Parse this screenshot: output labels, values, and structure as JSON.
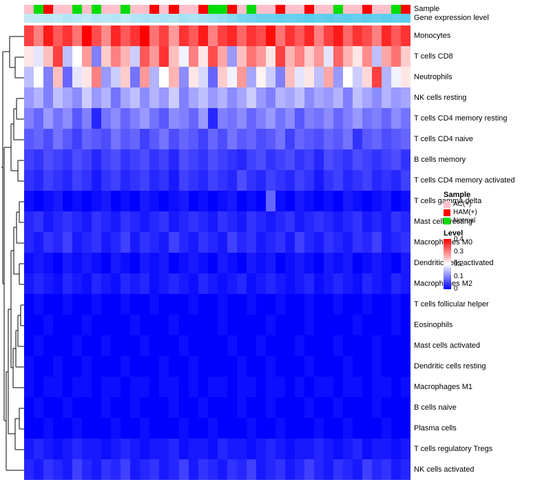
{
  "chart_data": {
    "type": "heatmap",
    "title": "",
    "annotation_labels": {
      "sample": "Sample",
      "gene": "Gene expression level"
    },
    "rows": [
      "Monocytes",
      "T cells CD8",
      "Neutrophils",
      "NK cells resting",
      "T cells CD4 memory resting",
      "T cells CD4 naive",
      "B cells memory",
      "T cells CD4 memory activated",
      "T cells gamma delta",
      "Mast cells resting",
      "Macrophages M0",
      "Dendritic cells activated",
      "Macrophages M2",
      "T cells follicular helper",
      "Eosinophils",
      "Mast cells activated",
      "Dendritic cells resting",
      "Macrophages M1",
      "B cells naive",
      "Plasma cells",
      "T cells regulatory  Tregs",
      "NK cells activated"
    ],
    "n_cols": 40,
    "sample_annotation": [
      "AC(+)",
      "Normal",
      "HAM(+)",
      "AC(+)",
      "AC(+)",
      "Normal",
      "AC(+)",
      "Normal",
      "AC(+)",
      "AC(+)",
      "Normal",
      "AC(+)",
      "AC(+)",
      "HAM(+)",
      "AC(+)",
      "HAM(+)",
      "AC(+)",
      "AC(+)",
      "HAM(+)",
      "Normal",
      "Normal",
      "HAM(+)",
      "AC(+)",
      "Normal",
      "AC(+)",
      "AC(+)",
      "HAM(+)",
      "AC(+)",
      "AC(+)",
      "HAM(+)",
      "AC(+)",
      "AC(+)",
      "Normal",
      "AC(+)",
      "AC(+)",
      "HAM(+)",
      "AC(+)",
      "AC(+)",
      "Normal",
      "HAM(+)"
    ],
    "sample_colors": {
      "AC(+)": "#FFC0CB",
      "HAM(+)": "#FF0000",
      "Normal": "#00DD00"
    },
    "gene_expression": [
      0.2,
      0.2,
      0.25,
      0.2,
      0.3,
      0.25,
      0.2,
      0.3,
      0.25,
      0.3,
      0.2,
      0.3,
      0.35,
      0.3,
      0.35,
      0.3,
      0.4,
      0.35,
      0.4,
      0.45,
      0.5,
      0.6,
      0.7,
      0.75,
      0.8,
      0.8,
      0.85,
      0.8,
      0.85,
      0.9,
      0.85,
      0.9,
      0.85,
      0.9,
      0.85,
      0.9,
      0.85,
      0.9,
      0.85,
      0.9
    ],
    "gene_gradient": [
      "#DEF1F8",
      "#4EC9EC"
    ],
    "color_scale": {
      "min": 0,
      "max": 0.4,
      "colors": [
        "#0000FF",
        "#FFFFFF",
        "#FF0000"
      ]
    },
    "matrix": [
      [
        0.35,
        0.3,
        0.38,
        0.33,
        0.36,
        0.31,
        0.4,
        0.34,
        0.29,
        0.37,
        0.33,
        0.36,
        0.42,
        0.31,
        0.35,
        0.28,
        0.36,
        0.33,
        0.38,
        0.3,
        0.35,
        0.37,
        0.32,
        0.36,
        0.34,
        0.39,
        0.31,
        0.36,
        0.33,
        0.37,
        0.3,
        0.35,
        0.38,
        0.32,
        0.36,
        0.34,
        0.3,
        0.37,
        0.33,
        0.36
      ],
      [
        0.22,
        0.18,
        0.25,
        0.35,
        0.15,
        0.2,
        0.28,
        0.1,
        0.24,
        0.3,
        0.26,
        0.16,
        0.33,
        0.28,
        0.36,
        0.25,
        0.19,
        0.3,
        0.22,
        0.34,
        0.27,
        0.12,
        0.25,
        0.31,
        0.28,
        0.22,
        0.35,
        0.26,
        0.3,
        0.24,
        0.28,
        0.18,
        0.32,
        0.26,
        0.22,
        0.29,
        0.15,
        0.27,
        0.31,
        0.24
      ],
      [
        0.15,
        0.2,
        0.1,
        0.25,
        0.08,
        0.18,
        0.22,
        0.3,
        0.12,
        0.16,
        0.24,
        0.09,
        0.28,
        0.14,
        0.2,
        0.26,
        0.11,
        0.22,
        0.17,
        0.08,
        0.24,
        0.19,
        0.28,
        0.13,
        0.21,
        0.16,
        0.1,
        0.25,
        0.18,
        0.22,
        0.15,
        0.27,
        0.12,
        0.2,
        0.16,
        0.23,
        0.35,
        0.14,
        0.19,
        0.22
      ],
      [
        0.12,
        0.14,
        0.1,
        0.15,
        0.13,
        0.11,
        0.16,
        0.12,
        0.14,
        0.09,
        0.13,
        0.15,
        0.11,
        0.14,
        0.12,
        0.16,
        0.1,
        0.13,
        0.15,
        0.12,
        0.14,
        0.11,
        0.13,
        0.16,
        0.12,
        0.1,
        0.14,
        0.13,
        0.15,
        0.11,
        0.13,
        0.12,
        0.14,
        0.1,
        0.15,
        0.13,
        0.11,
        0.14,
        0.12,
        0.13
      ],
      [
        0.1,
        0.08,
        0.12,
        0.09,
        0.11,
        0.07,
        0.1,
        0.03,
        0.09,
        0.11,
        0.08,
        0.1,
        0.12,
        0.09,
        0.07,
        0.11,
        0.1,
        0.08,
        0.12,
        0.03,
        0.1,
        0.09,
        0.11,
        0.08,
        0.1,
        0.12,
        0.09,
        0.11,
        0.07,
        0.1,
        0.09,
        0.11,
        0.08,
        0.1,
        0.12,
        0.09,
        0.1,
        0.08,
        0.11,
        0.09
      ],
      [
        0.07,
        0.08,
        0.06,
        0.09,
        0.07,
        0.05,
        0.08,
        0.07,
        0.06,
        0.09,
        0.07,
        0.08,
        0.05,
        0.07,
        0.09,
        0.06,
        0.08,
        0.07,
        0.05,
        0.08,
        0.06,
        0.09,
        0.07,
        0.08,
        0.06,
        0.07,
        0.09,
        0.05,
        0.08,
        0.07,
        0.06,
        0.08,
        0.07,
        0.09,
        0.04,
        0.07,
        0.08,
        0.06,
        0.07,
        0.08
      ],
      [
        0.05,
        0.04,
        0.06,
        0.05,
        0.04,
        0.06,
        0.05,
        0.03,
        0.05,
        0.06,
        0.04,
        0.05,
        0.06,
        0.04,
        0.05,
        0.03,
        0.06,
        0.05,
        0.04,
        0.06,
        0.05,
        0.04,
        0.03,
        0.05,
        0.06,
        0.04,
        0.05,
        0.06,
        0.04,
        0.05,
        0.03,
        0.06,
        0.05,
        0.04,
        0.06,
        0.05,
        0.04,
        0.05,
        0.06,
        0.04
      ],
      [
        0.04,
        0.03,
        0.05,
        0.04,
        0.03,
        0.05,
        0.04,
        0.02,
        0.04,
        0.05,
        0.03,
        0.04,
        0.05,
        0.03,
        0.04,
        0.02,
        0.05,
        0.04,
        0.03,
        0.05,
        0.04,
        0.03,
        0.06,
        0.04,
        0.03,
        0.05,
        0.04,
        0.03,
        0.05,
        0.04,
        0.02,
        0.04,
        0.05,
        0.03,
        0.04,
        0.05,
        0.03,
        0.04,
        0.03,
        0.05
      ],
      [
        0.01,
        0.0,
        0.01,
        0.02,
        0.0,
        0.01,
        0.0,
        0.01,
        0.02,
        0.0,
        0.01,
        0.0,
        0.02,
        0.01,
        0.0,
        0.01,
        0.02,
        0.0,
        0.01,
        0.0,
        0.01,
        0.02,
        0.0,
        0.01,
        0.0,
        0.08,
        0.01,
        0.0,
        0.02,
        0.01,
        0.0,
        0.01,
        0.0,
        0.02,
        0.01,
        0.0,
        0.01,
        0.02,
        0.0,
        0.01
      ],
      [
        0.03,
        0.04,
        0.02,
        0.03,
        0.04,
        0.03,
        0.02,
        0.04,
        0.03,
        0.02,
        0.04,
        0.03,
        0.02,
        0.03,
        0.04,
        0.02,
        0.03,
        0.04,
        0.03,
        0.02,
        0.04,
        0.03,
        0.02,
        0.04,
        0.03,
        0.02,
        0.03,
        0.04,
        0.02,
        0.03,
        0.04,
        0.03,
        0.02,
        0.03,
        0.04,
        0.02,
        0.03,
        0.02,
        0.04,
        0.03
      ],
      [
        0.03,
        0.02,
        0.04,
        0.03,
        0.05,
        0.02,
        0.03,
        0.04,
        0.02,
        0.03,
        0.05,
        0.02,
        0.04,
        0.03,
        0.02,
        0.05,
        0.03,
        0.02,
        0.04,
        0.03,
        0.02,
        0.05,
        0.03,
        0.04,
        0.02,
        0.03,
        0.04,
        0.02,
        0.05,
        0.03,
        0.02,
        0.04,
        0.03,
        0.02,
        0.04,
        0.03,
        0.05,
        0.02,
        0.03,
        0.04
      ],
      [
        0.01,
        0.02,
        0.01,
        0.0,
        0.02,
        0.01,
        0.02,
        0.01,
        0.0,
        0.02,
        0.01,
        0.0,
        0.02,
        0.01,
        0.02,
        0.0,
        0.01,
        0.02,
        0.01,
        0.0,
        0.02,
        0.01,
        0.0,
        0.02,
        0.01,
        0.02,
        0.0,
        0.01,
        0.02,
        0.01,
        0.0,
        0.02,
        0.01,
        0.02,
        0.0,
        0.01,
        0.02,
        0.01,
        0.0,
        0.02
      ],
      [
        0.02,
        0.03,
        0.02,
        0.01,
        0.03,
        0.02,
        0.01,
        0.03,
        0.02,
        0.01,
        0.03,
        0.02,
        0.03,
        0.01,
        0.02,
        0.03,
        0.02,
        0.01,
        0.03,
        0.02,
        0.01,
        0.02,
        0.03,
        0.01,
        0.02,
        0.03,
        0.02,
        0.01,
        0.02,
        0.03,
        0.01,
        0.02,
        0.03,
        0.02,
        0.01,
        0.03,
        0.02,
        0.01,
        0.03,
        0.02
      ],
      [
        0.0,
        0.01,
        0.0,
        0.0,
        0.01,
        0.0,
        0.0,
        0.01,
        0.0,
        0.0,
        0.01,
        0.0,
        0.0,
        0.01,
        0.0,
        0.0,
        0.0,
        0.01,
        0.0,
        0.0,
        0.01,
        0.0,
        0.0,
        0.01,
        0.0,
        0.0,
        0.01,
        0.0,
        0.0,
        0.01,
        0.0,
        0.0,
        0.01,
        0.0,
        0.0,
        0.01,
        0.0,
        0.0,
        0.01,
        0.0
      ],
      [
        0.0,
        0.0,
        0.01,
        0.0,
        0.0,
        0.0,
        0.01,
        0.0,
        0.0,
        0.0,
        0.0,
        0.01,
        0.0,
        0.0,
        0.0,
        0.01,
        0.0,
        0.0,
        0.0,
        0.0,
        0.01,
        0.0,
        0.0,
        0.0,
        0.0,
        0.01,
        0.0,
        0.0,
        0.0,
        0.01,
        0.0,
        0.0,
        0.0,
        0.0,
        0.01,
        0.0,
        0.0,
        0.0,
        0.01,
        0.0
      ],
      [
        0.0,
        0.01,
        0.0,
        0.0,
        0.0,
        0.01,
        0.0,
        0.0,
        0.01,
        0.0,
        0.0,
        0.0,
        0.01,
        0.0,
        0.0,
        0.0,
        0.01,
        0.0,
        0.0,
        0.0,
        0.0,
        0.01,
        0.0,
        0.0,
        0.01,
        0.0,
        0.0,
        0.0,
        0.01,
        0.0,
        0.0,
        0.0,
        0.01,
        0.0,
        0.0,
        0.0,
        0.01,
        0.0,
        0.0,
        0.0
      ],
      [
        0.01,
        0.0,
        0.0,
        0.01,
        0.0,
        0.0,
        0.01,
        0.0,
        0.0,
        0.0,
        0.01,
        0.0,
        0.0,
        0.0,
        0.01,
        0.0,
        0.0,
        0.01,
        0.0,
        0.0,
        0.0,
        0.0,
        0.01,
        0.0,
        0.0,
        0.01,
        0.0,
        0.0,
        0.0,
        0.01,
        0.0,
        0.0,
        0.0,
        0.01,
        0.0,
        0.0,
        0.01,
        0.0,
        0.0,
        0.0
      ],
      [
        0.01,
        0.0,
        0.01,
        0.01,
        0.0,
        0.01,
        0.01,
        0.0,
        0.01,
        0.01,
        0.0,
        0.01,
        0.01,
        0.0,
        0.01,
        0.01,
        0.0,
        0.01,
        0.0,
        0.01,
        0.01,
        0.0,
        0.01,
        0.01,
        0.0,
        0.01,
        0.01,
        0.0,
        0.01,
        0.0,
        0.01,
        0.01,
        0.0,
        0.01,
        0.01,
        0.0,
        0.01,
        0.01,
        0.0,
        0.01
      ],
      [
        0.0,
        0.01,
        0.0,
        0.0,
        0.01,
        0.0,
        0.0,
        0.0,
        0.01,
        0.0,
        0.0,
        0.01,
        0.0,
        0.0,
        0.0,
        0.01,
        0.0,
        0.0,
        0.01,
        0.0,
        0.0,
        0.0,
        0.01,
        0.0,
        0.0,
        0.01,
        0.0,
        0.0,
        0.0,
        0.01,
        0.0,
        0.0,
        0.01,
        0.0,
        0.0,
        0.0,
        0.01,
        0.0,
        0.0,
        0.0
      ],
      [
        0.0,
        0.0,
        0.01,
        0.0,
        0.0,
        0.01,
        0.0,
        0.0,
        0.0,
        0.01,
        0.0,
        0.0,
        0.01,
        0.0,
        0.0,
        0.0,
        0.01,
        0.0,
        0.0,
        0.01,
        0.0,
        0.0,
        0.0,
        0.01,
        0.0,
        0.0,
        0.01,
        0.0,
        0.0,
        0.0,
        0.01,
        0.0,
        0.0,
        0.01,
        0.0,
        0.0,
        0.0,
        0.01,
        0.0,
        0.0
      ],
      [
        0.02,
        0.03,
        0.02,
        0.01,
        0.02,
        0.03,
        0.02,
        0.02,
        0.01,
        0.02,
        0.03,
        0.02,
        0.01,
        0.02,
        0.02,
        0.03,
        0.01,
        0.02,
        0.02,
        0.01,
        0.03,
        0.02,
        0.02,
        0.01,
        0.02,
        0.03,
        0.02,
        0.01,
        0.02,
        0.02,
        0.03,
        0.02,
        0.01,
        0.02,
        0.03,
        0.01,
        0.02,
        0.02,
        0.01,
        0.02
      ],
      [
        0.03,
        0.02,
        0.04,
        0.03,
        0.02,
        0.05,
        0.03,
        0.02,
        0.04,
        0.03,
        0.05,
        0.02,
        0.03,
        0.04,
        0.02,
        0.03,
        0.05,
        0.02,
        0.04,
        0.03,
        0.02,
        0.04,
        0.03,
        0.05,
        0.02,
        0.03,
        0.04,
        0.02,
        0.03,
        0.05,
        0.03,
        0.02,
        0.04,
        0.03,
        0.02,
        0.05,
        0.03,
        0.04,
        0.02,
        0.03
      ]
    ],
    "legend": {
      "sample_title": "Sample",
      "sample_items": [
        {
          "label": "AC(+)",
          "color": "#FFC0CB"
        },
        {
          "label": "HAM(+)",
          "color": "#FF0000"
        },
        {
          "label": "Normal",
          "color": "#00DD00"
        }
      ],
      "level_title": "Level",
      "level_ticks": [
        "0.4",
        "0.3",
        "0.2",
        "0.1",
        "0"
      ]
    }
  }
}
